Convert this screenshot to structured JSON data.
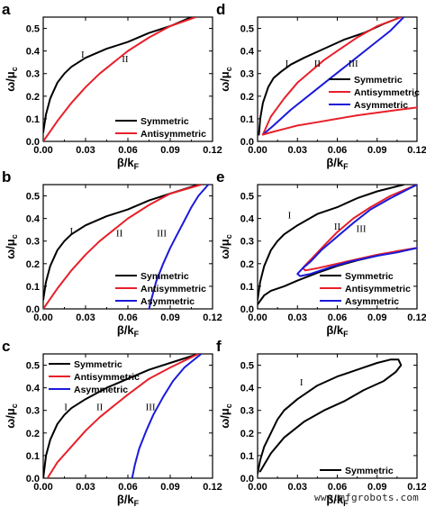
{
  "chart_data": [
    {
      "panel": "a",
      "type": "line",
      "xlabel": "β/k_F",
      "ylabel": "ω/μ_c",
      "xlim": [
        0,
        0.12
      ],
      "ylim": [
        0,
        0.55
      ],
      "xticks": [
        "0.00",
        "0.03",
        "0.06",
        "0.09",
        "0.12"
      ],
      "yticks": [
        "0.0",
        "0.1",
        "0.2",
        "0.3",
        "0.4",
        "0.5"
      ],
      "legend_position": "bottom-right",
      "series": [
        {
          "name": "Symmetric",
          "color": "#000000",
          "x": [
            0.0,
            0.002,
            0.005,
            0.01,
            0.015,
            0.02,
            0.03,
            0.045,
            0.06,
            0.075,
            0.09,
            0.105
          ],
          "y": [
            0.04,
            0.12,
            0.19,
            0.26,
            0.3,
            0.33,
            0.37,
            0.41,
            0.44,
            0.48,
            0.51,
            0.55
          ]
        },
        {
          "name": "Antisymmetric",
          "color": "#e8202a",
          "x": [
            0.0,
            0.01,
            0.02,
            0.03,
            0.04,
            0.05,
            0.06,
            0.075,
            0.09,
            0.108
          ],
          "y": [
            0.0,
            0.09,
            0.17,
            0.24,
            0.3,
            0.35,
            0.4,
            0.46,
            0.51,
            0.55
          ]
        }
      ],
      "annotations": [
        {
          "text": "I",
          "x": 0.028,
          "y": 0.37
        },
        {
          "text": "II",
          "x": 0.058,
          "y": 0.35
        }
      ]
    },
    {
      "panel": "b",
      "type": "line",
      "xlabel": "β/k_F",
      "ylabel": "ω/μ_c",
      "xlim": [
        0,
        0.12
      ],
      "ylim": [
        0,
        0.55
      ],
      "xticks": [
        "0.00",
        "0.03",
        "0.06",
        "0.09",
        "0.12"
      ],
      "yticks": [
        "0.0",
        "0.1",
        "0.2",
        "0.3",
        "0.4",
        "0.5"
      ],
      "legend_position": "bottom-right",
      "series": [
        {
          "name": "Symmetric",
          "color": "#000000",
          "x": [
            0.0,
            0.002,
            0.005,
            0.01,
            0.015,
            0.02,
            0.03,
            0.045,
            0.06,
            0.075,
            0.09,
            0.11
          ],
          "y": [
            0.04,
            0.12,
            0.19,
            0.26,
            0.3,
            0.33,
            0.37,
            0.41,
            0.44,
            0.48,
            0.51,
            0.55
          ]
        },
        {
          "name": "Antisymmetric",
          "color": "#e8202a",
          "x": [
            0.0,
            0.01,
            0.02,
            0.03,
            0.04,
            0.05,
            0.06,
            0.075,
            0.09,
            0.112
          ],
          "y": [
            0.0,
            0.09,
            0.17,
            0.24,
            0.3,
            0.35,
            0.4,
            0.46,
            0.51,
            0.55
          ]
        },
        {
          "name": "Asymmetric",
          "color": "#1a1adb",
          "x": [
            0.075,
            0.077,
            0.08,
            0.085,
            0.09,
            0.095,
            0.1,
            0.105,
            0.11,
            0.117
          ],
          "y": [
            0.0,
            0.05,
            0.12,
            0.2,
            0.27,
            0.33,
            0.39,
            0.45,
            0.5,
            0.55
          ]
        }
      ],
      "annotations": [
        {
          "text": "I",
          "x": 0.02,
          "y": 0.33
        },
        {
          "text": "II",
          "x": 0.054,
          "y": 0.32
        },
        {
          "text": "III",
          "x": 0.084,
          "y": 0.32
        }
      ]
    },
    {
      "panel": "c",
      "type": "line",
      "xlabel": "β/k_F",
      "ylabel": "ω/μ_c",
      "xlim": [
        0,
        0.12
      ],
      "ylim": [
        0,
        0.55
      ],
      "xticks": [
        "0.00",
        "0.03",
        "0.06",
        "0.09",
        "0.12"
      ],
      "yticks": [
        "0.0",
        "0.1",
        "0.2",
        "0.3",
        "0.4",
        "0.5"
      ],
      "legend_position": "top-left",
      "series": [
        {
          "name": "Symmetric",
          "color": "#000000",
          "x": [
            0.0,
            0.002,
            0.005,
            0.01,
            0.015,
            0.02,
            0.03,
            0.045,
            0.06,
            0.075,
            0.09,
            0.11
          ],
          "y": [
            0.0,
            0.1,
            0.17,
            0.24,
            0.28,
            0.31,
            0.35,
            0.4,
            0.44,
            0.48,
            0.51,
            0.55
          ]
        },
        {
          "name": "Antisymmetric",
          "color": "#e8202a",
          "x": [
            0.003,
            0.01,
            0.02,
            0.03,
            0.04,
            0.05,
            0.06,
            0.075,
            0.09,
            0.11
          ],
          "y": [
            0.0,
            0.07,
            0.14,
            0.21,
            0.27,
            0.32,
            0.37,
            0.44,
            0.49,
            0.55
          ]
        },
        {
          "name": "Asymmetric",
          "color": "#1a1adb",
          "x": [
            0.063,
            0.065,
            0.068,
            0.073,
            0.078,
            0.085,
            0.092,
            0.1,
            0.106,
            0.112
          ],
          "y": [
            0.0,
            0.06,
            0.13,
            0.21,
            0.28,
            0.36,
            0.43,
            0.49,
            0.52,
            0.55
          ]
        }
      ],
      "annotations": [
        {
          "text": "I",
          "x": 0.016,
          "y": 0.3
        },
        {
          "text": "II",
          "x": 0.04,
          "y": 0.3
        },
        {
          "text": "III",
          "x": 0.076,
          "y": 0.3
        }
      ]
    },
    {
      "panel": "d",
      "type": "line",
      "xlabel": "β/k_F",
      "ylabel": "ω/μ_c",
      "xlim": [
        0,
        0.12
      ],
      "ylim": [
        0,
        0.55
      ],
      "xticks": [
        "0.00",
        "0.03",
        "0.06",
        "0.09",
        "0.12"
      ],
      "yticks": [
        "0.0",
        "0.1",
        "0.2",
        "0.3",
        "0.4",
        "0.5"
      ],
      "legend_position": "right-middle",
      "series": [
        {
          "name": "Symmetric",
          "color": "#000000",
          "x": [
            0.001,
            0.002,
            0.004,
            0.008,
            0.012,
            0.018,
            0.025,
            0.035,
            0.05,
            0.065,
            0.08,
            0.095,
            0.108
          ],
          "y": [
            0.03,
            0.1,
            0.17,
            0.24,
            0.28,
            0.31,
            0.34,
            0.37,
            0.41,
            0.45,
            0.48,
            0.52,
            0.55
          ]
        },
        {
          "name": "Antisymmetric",
          "color": "#e8202a",
          "x": [
            0.004,
            0.01,
            0.02,
            0.03,
            0.04,
            0.05,
            0.06,
            0.075,
            0.09,
            0.108
          ],
          "y": [
            0.03,
            0.11,
            0.19,
            0.26,
            0.31,
            0.36,
            0.4,
            0.46,
            0.51,
            0.55
          ]
        },
        {
          "name": "Asymmetric",
          "color": "#1a1adb",
          "x": [
            0.004,
            0.012,
            0.025,
            0.04,
            0.055,
            0.07,
            0.085,
            0.1,
            0.11
          ],
          "y": [
            0.03,
            0.07,
            0.14,
            0.21,
            0.28,
            0.35,
            0.42,
            0.49,
            0.55
          ]
        },
        {
          "name": "",
          "color": "#e8202a",
          "x": [
            0.004,
            0.01,
            0.02,
            0.03,
            0.045,
            0.06,
            0.075,
            0.09,
            0.105,
            0.12
          ],
          "y": [
            0.03,
            0.04,
            0.055,
            0.07,
            0.085,
            0.1,
            0.115,
            0.127,
            0.139,
            0.15
          ]
        }
      ],
      "annotations": [
        {
          "text": "I",
          "x": 0.022,
          "y": 0.33
        },
        {
          "text": "II",
          "x": 0.045,
          "y": 0.33
        },
        {
          "text": "III",
          "x": 0.072,
          "y": 0.33
        }
      ]
    },
    {
      "panel": "e",
      "type": "line",
      "xlabel": "β/k_F",
      "ylabel": "ω/μ_c",
      "xlim": [
        0,
        0.12
      ],
      "ylim": [
        0,
        0.55
      ],
      "xticks": [
        "0.00",
        "0.03",
        "0.06",
        "0.09",
        "0.12"
      ],
      "yticks": [
        "0.0",
        "0.1",
        "0.2",
        "0.3",
        "0.4",
        "0.5"
      ],
      "legend_position": "bottom-right",
      "series": [
        {
          "name": "Symmetric",
          "color": "#000000",
          "x": [
            0.0,
            0.002,
            0.005,
            0.01,
            0.015,
            0.02,
            0.03,
            0.045,
            0.06,
            0.075,
            0.09,
            0.11
          ],
          "y": [
            0.04,
            0.12,
            0.19,
            0.26,
            0.3,
            0.33,
            0.37,
            0.42,
            0.45,
            0.49,
            0.52,
            0.55
          ]
        },
        {
          "name": "",
          "color": "#000000",
          "x": [
            0.0,
            0.005,
            0.01,
            0.02,
            0.03,
            0.045,
            0.06,
            0.075,
            0.09,
            0.105,
            0.12
          ],
          "y": [
            0.02,
            0.06,
            0.08,
            0.1,
            0.125,
            0.16,
            0.19,
            0.215,
            0.235,
            0.255,
            0.27
          ]
        },
        {
          "name": "Antisymmetric",
          "color": "#e8202a",
          "x": [
            0.12,
            0.1,
            0.085,
            0.072,
            0.06,
            0.05,
            0.042,
            0.037,
            0.034,
            0.036,
            0.045,
            0.06,
            0.075,
            0.09,
            0.105,
            0.12
          ],
          "y": [
            0.55,
            0.5,
            0.45,
            0.4,
            0.34,
            0.28,
            0.23,
            0.2,
            0.18,
            0.17,
            0.18,
            0.2,
            0.22,
            0.24,
            0.255,
            0.27
          ]
        },
        {
          "name": "Asymmetric",
          "color": "#1a1adb",
          "x": [
            0.12,
            0.1,
            0.085,
            0.072,
            0.06,
            0.048,
            0.04,
            0.034,
            0.03,
            0.032,
            0.04,
            0.055,
            0.07,
            0.09,
            0.105,
            0.12
          ],
          "y": [
            0.55,
            0.49,
            0.44,
            0.38,
            0.32,
            0.26,
            0.21,
            0.18,
            0.155,
            0.145,
            0.155,
            0.185,
            0.21,
            0.235,
            0.25,
            0.27
          ]
        }
      ],
      "annotations": [
        {
          "text": "I",
          "x": 0.024,
          "y": 0.4
        },
        {
          "text": "II",
          "x": 0.06,
          "y": 0.35
        },
        {
          "text": "III",
          "x": 0.078,
          "y": 0.34
        }
      ]
    },
    {
      "panel": "f",
      "type": "line",
      "xlabel": "β/k_F",
      "ylabel": "ω/μ_c",
      "xlim": [
        0,
        0.12
      ],
      "ylim": [
        0,
        0.55
      ],
      "xticks": [
        "0.00",
        "0.03",
        "0.06",
        "0.09",
        "0.12"
      ],
      "yticks": [
        "0.0",
        "0.1",
        "0.2",
        "0.3",
        "0.4",
        "0.5"
      ],
      "legend_position": "bottom-right",
      "series": [
        {
          "name": "Symmetric",
          "color": "#000000",
          "x": [
            0.0,
            0.002,
            0.005,
            0.01,
            0.015,
            0.02,
            0.03,
            0.045,
            0.06,
            0.075,
            0.09,
            0.1,
            0.106,
            0.108,
            0.104,
            0.095,
            0.08,
            0.065,
            0.05,
            0.035,
            0.02,
            0.01,
            0.005,
            0.002
          ],
          "y": [
            0.02,
            0.08,
            0.14,
            0.2,
            0.26,
            0.3,
            0.35,
            0.41,
            0.45,
            0.48,
            0.51,
            0.525,
            0.525,
            0.5,
            0.47,
            0.43,
            0.39,
            0.34,
            0.3,
            0.25,
            0.18,
            0.11,
            0.06,
            0.03
          ]
        }
      ],
      "annotations": [
        {
          "text": "I",
          "x": 0.033,
          "y": 0.41
        }
      ]
    }
  ],
  "watermark": "www.mfgrobots.com"
}
